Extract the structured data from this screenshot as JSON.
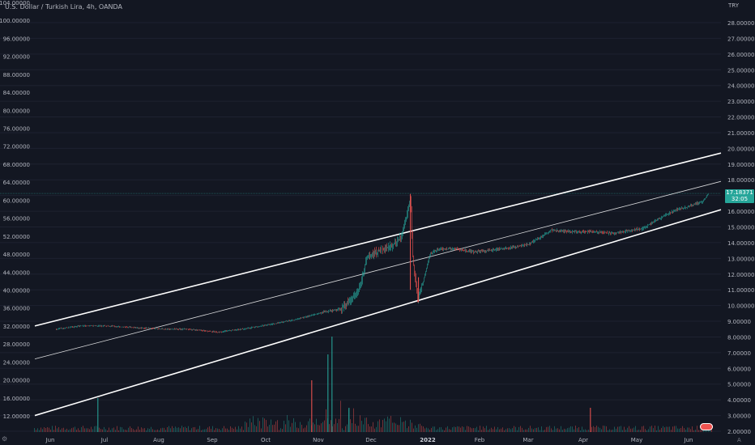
{
  "header": {
    "title": "U.S. Dollar / Turkish Lira, 4h, OANDA",
    "currency": "TRY"
  },
  "price_tag": {
    "price": "17.18371",
    "countdown": "32:05"
  },
  "icons": {
    "settings": "gear-icon",
    "auto_scale": "A",
    "event": "flag-icon"
  },
  "colors": {
    "background": "#131722",
    "up": "#26a69a",
    "down": "#ef5350",
    "channel": "#ffffff",
    "axis_text": "#b2b5be"
  },
  "chart_data": {
    "type": "candlestick",
    "title": "U.S. Dollar / Turkish Lira, 4h, OANDA",
    "left_axis": {
      "ticks": [
        "104.00000",
        "100.00000",
        "96.00000",
        "92.00000",
        "88.00000",
        "84.00000",
        "80.00000",
        "76.00000",
        "72.00000",
        "68.00000",
        "64.00000",
        "60.00000",
        "56.00000",
        "52.00000",
        "48.00000",
        "44.00000",
        "40.00000",
        "36.00000",
        "32.00000",
        "28.00000",
        "24.00000",
        "20.00000",
        "16.00000",
        "12.00000"
      ]
    },
    "right_axis": {
      "label": "TRY",
      "ticks": [
        "28.00000",
        "27.00000",
        "26.00000",
        "25.00000",
        "24.00000",
        "23.00000",
        "22.00000",
        "21.00000",
        "20.00000",
        "19.00000",
        "18.00000",
        "17.00000",
        "16.00000",
        "15.00000",
        "14.00000",
        "13.00000",
        "12.00000",
        "11.00000",
        "10.00000",
        "9.00000",
        "8.00000",
        "7.00000",
        "6.00000",
        "5.00000",
        "4.00000",
        "3.00000",
        "2.00000"
      ],
      "range": [
        2.0,
        28.0
      ]
    },
    "x_ticks": [
      "Jun",
      "Jul",
      "Aug",
      "Sep",
      "Oct",
      "Nov",
      "Dec",
      "2022",
      "Feb",
      "Mar",
      "Apr",
      "May",
      "Jun"
    ],
    "price_path": [
      [
        "2021-06-01",
        8.5
      ],
      [
        "2021-06-15",
        8.7
      ],
      [
        "2021-07-01",
        8.7
      ],
      [
        "2021-07-15",
        8.6
      ],
      [
        "2021-08-01",
        8.5
      ],
      [
        "2021-08-15",
        8.5
      ],
      [
        "2021-09-01",
        8.3
      ],
      [
        "2021-09-15",
        8.5
      ],
      [
        "2021-10-01",
        8.8
      ],
      [
        "2021-10-15",
        9.1
      ],
      [
        "2021-11-01",
        9.6
      ],
      [
        "2021-11-10",
        9.8
      ],
      [
        "2021-11-15",
        10.3
      ],
      [
        "2021-11-20",
        10.9
      ],
      [
        "2021-11-23",
        12.0
      ],
      [
        "2021-11-25",
        13.2
      ],
      [
        "2021-12-01",
        13.4
      ],
      [
        "2021-12-10",
        13.8
      ],
      [
        "2021-12-15",
        14.5
      ],
      [
        "2021-12-20",
        16.8
      ],
      [
        "2021-12-21",
        13.2
      ],
      [
        "2021-12-23",
        11.3
      ],
      [
        "2021-12-24",
        10.4
      ],
      [
        "2021-12-27",
        11.5
      ],
      [
        "2021-12-31",
        13.3
      ],
      [
        "2022-01-05",
        13.6
      ],
      [
        "2022-01-15",
        13.6
      ],
      [
        "2022-01-25",
        13.4
      ],
      [
        "2022-02-10",
        13.6
      ],
      [
        "2022-02-25",
        13.9
      ],
      [
        "2022-03-05",
        14.4
      ],
      [
        "2022-03-10",
        14.8
      ],
      [
        "2022-03-20",
        14.7
      ],
      [
        "2022-04-01",
        14.7
      ],
      [
        "2022-04-15",
        14.6
      ],
      [
        "2022-04-25",
        14.8
      ],
      [
        "2022-05-01",
        14.9
      ],
      [
        "2022-05-10",
        15.5
      ],
      [
        "2022-05-20",
        16.1
      ],
      [
        "2022-05-30",
        16.4
      ],
      [
        "2022-06-05",
        16.7
      ],
      [
        "2022-06-08",
        17.18
      ]
    ],
    "last_price": 17.18371,
    "regression_channel": {
      "upper": {
        "start": [
          "2021-05-20",
          8.7
        ],
        "end": [
          "2022-06-15",
          19.7
        ]
      },
      "middle": {
        "start": [
          "2021-05-20",
          6.6
        ],
        "end": [
          "2022-06-15",
          17.9
        ]
      },
      "lower": {
        "start": [
          "2021-05-20",
          3.0
        ],
        "end": [
          "2022-06-15",
          16.1
        ]
      }
    },
    "grid": true
  }
}
